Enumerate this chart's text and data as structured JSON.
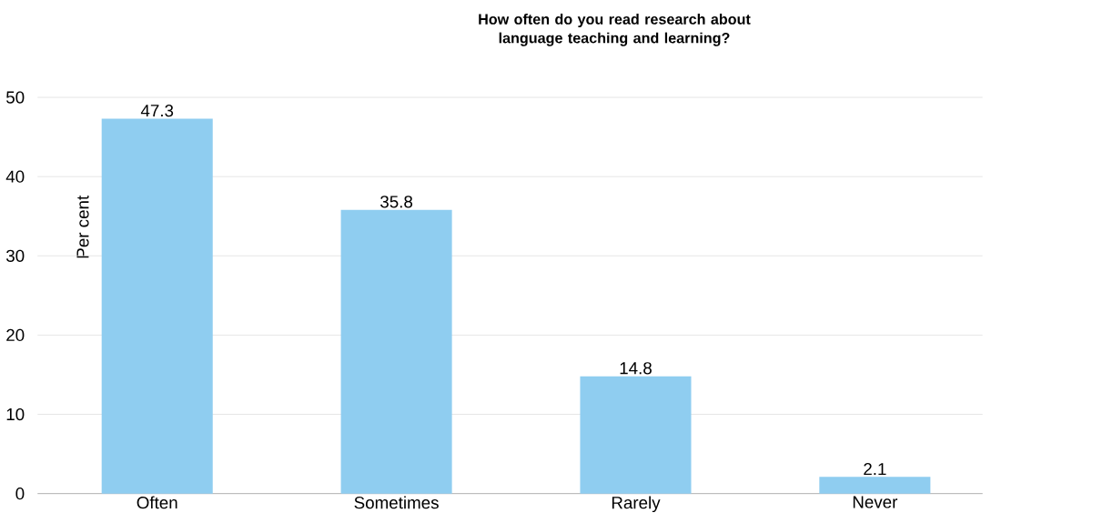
{
  "chart_data": {
    "type": "bar",
    "title": "How often do you read research about\nlanguage teaching and learning?",
    "ylabel": "Per cent",
    "categories": [
      "Often",
      "Sometimes",
      "Rarely",
      "Never"
    ],
    "values": [
      47.3,
      35.8,
      14.8,
      2.1
    ],
    "color": "#8fcdf0",
    "ylim": [
      0,
      50
    ],
    "yticks": [
      0,
      10,
      20,
      30,
      40,
      50
    ],
    "grid": "y",
    "data_labels": true
  }
}
